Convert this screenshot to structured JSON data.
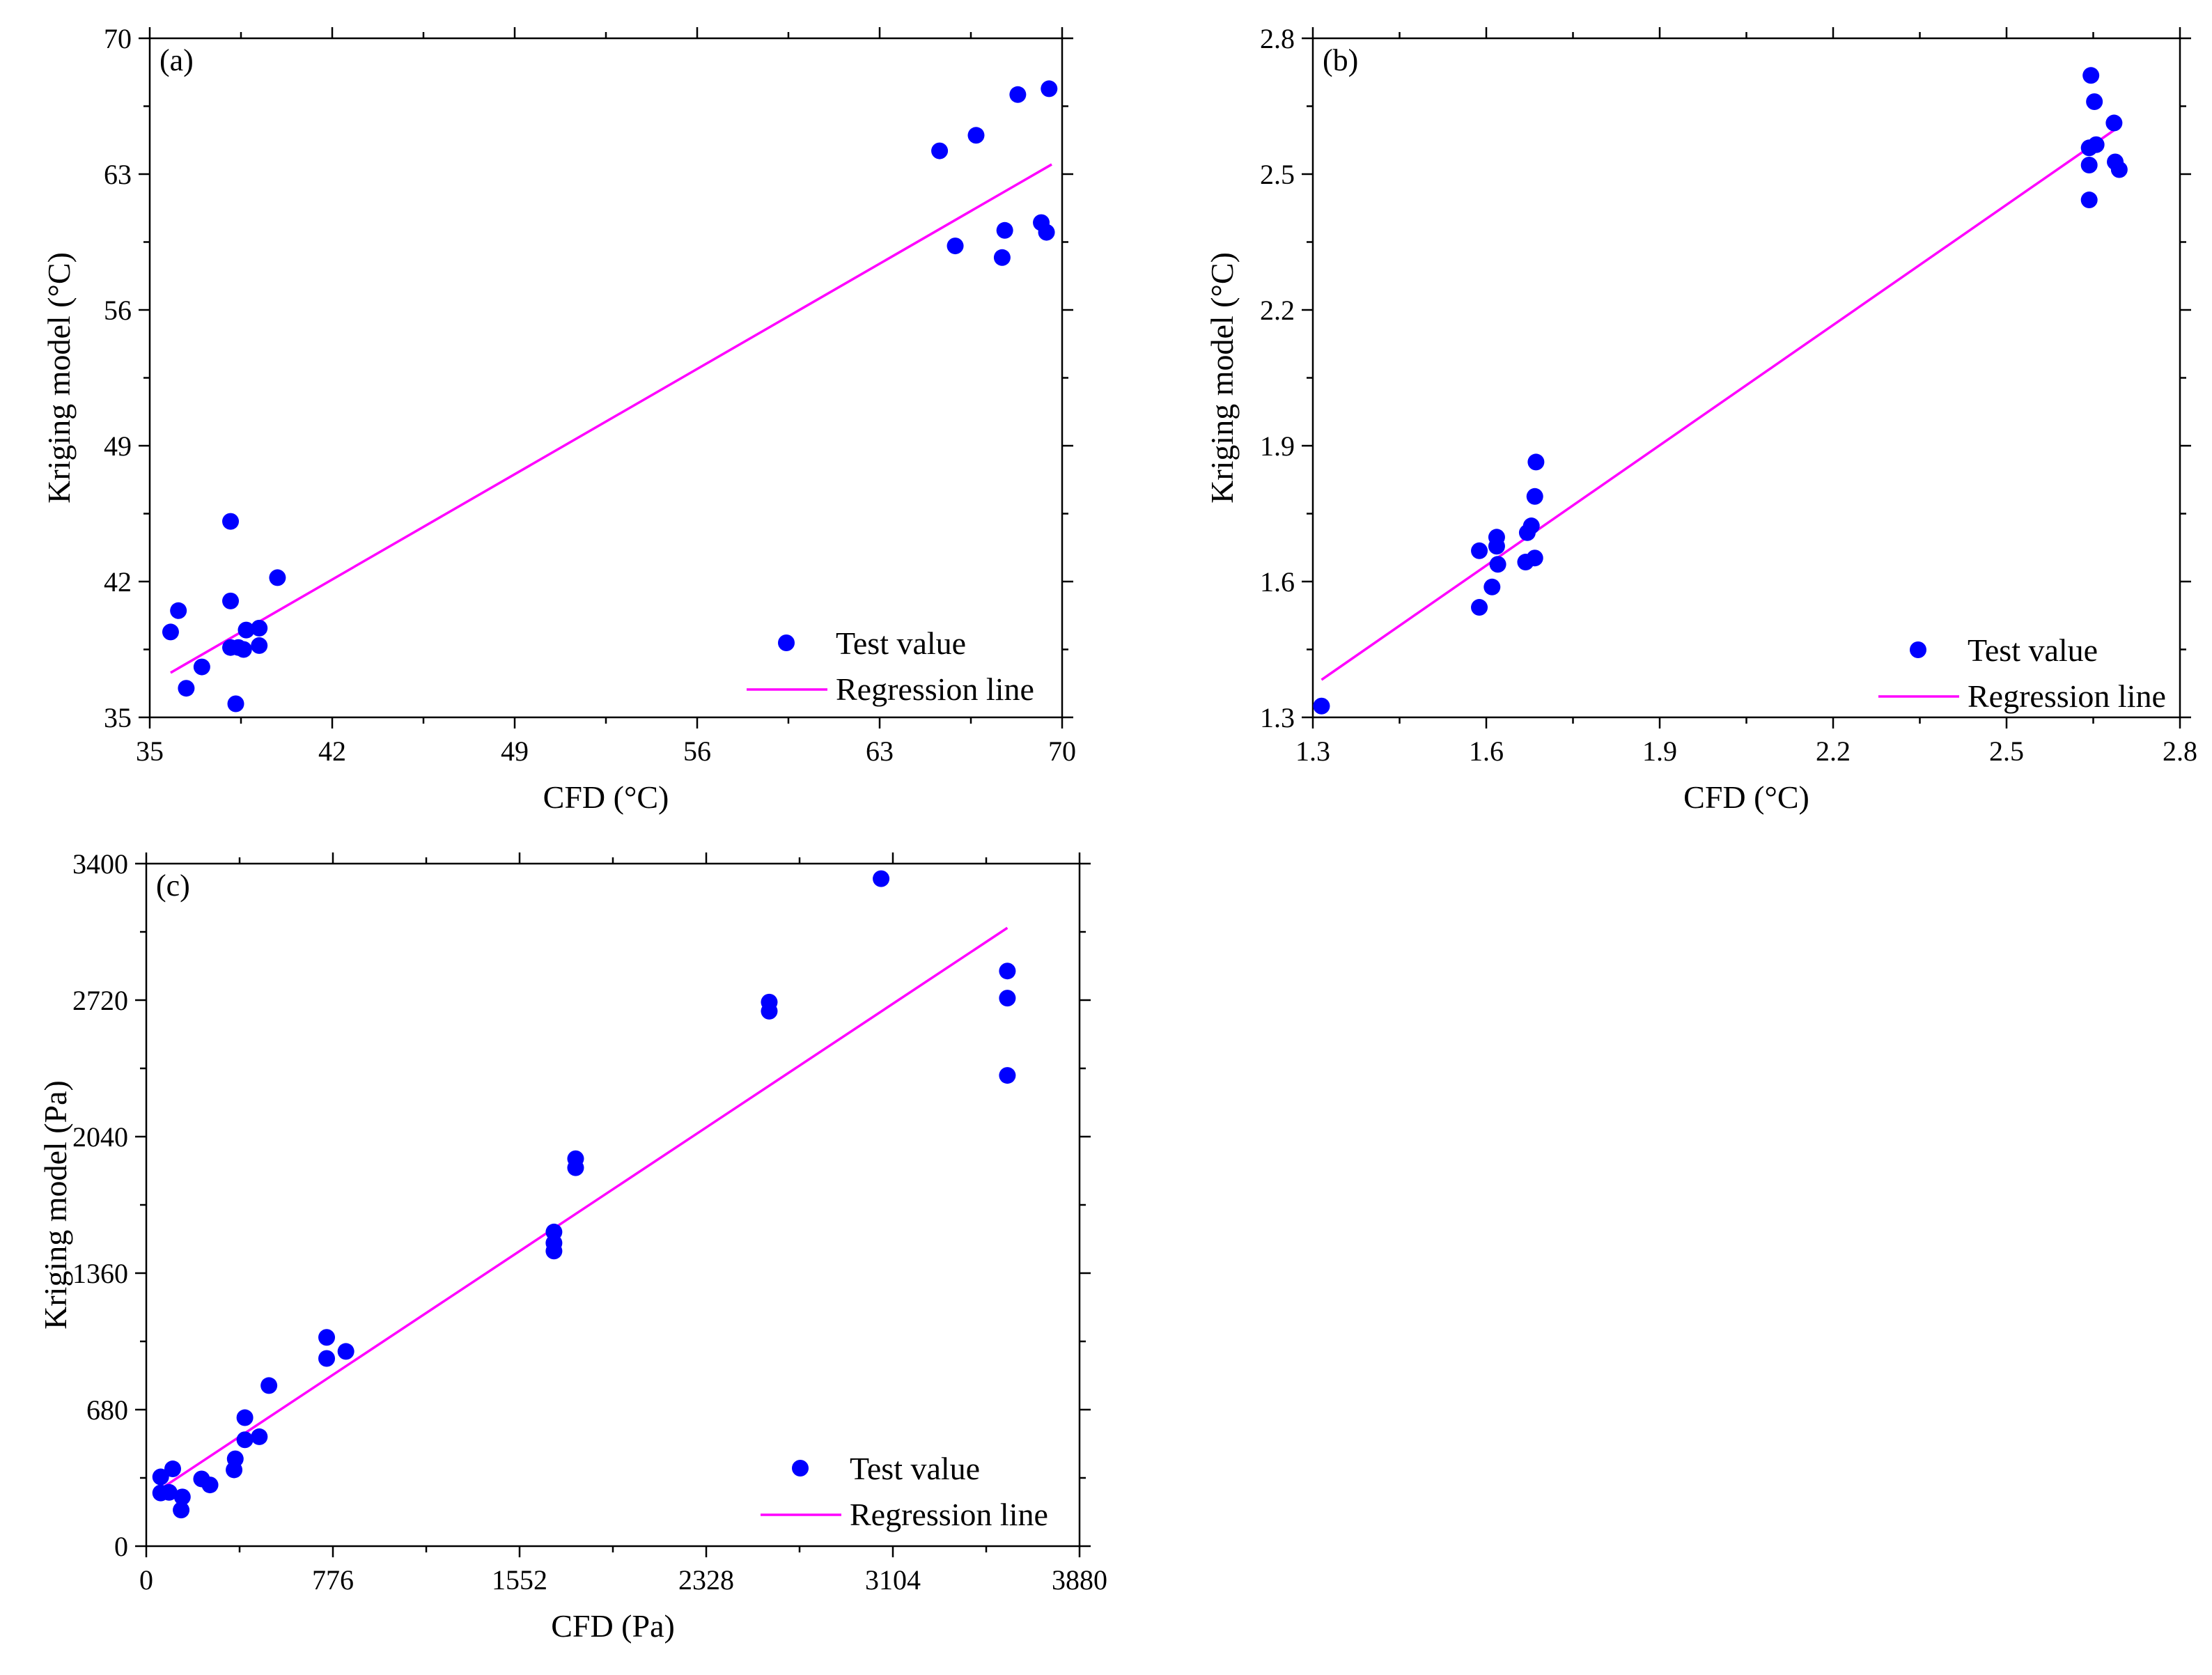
{
  "chart_data": [
    {
      "type": "scatter",
      "panel_label": "(a)",
      "xlabel": "CFD (°C)",
      "ylabel": "Kriging model (°C)",
      "xlim": [
        35,
        70
      ],
      "ylim": [
        35,
        70
      ],
      "xticks": [
        35,
        42,
        49,
        56,
        63,
        70
      ],
      "yticks": [
        35,
        42,
        49,
        56,
        63,
        70
      ],
      "xtick_labels": [
        "35",
        "42",
        "49",
        "56",
        "63",
        "70"
      ],
      "ytick_labels": [
        "35",
        "42",
        "49",
        "56",
        "63",
        "70"
      ],
      "legend_position": "bottom-right",
      "colors": {
        "points": "#0000ff",
        "line": "#ff00ff"
      },
      "series": [
        {
          "name": "Test value",
          "kind": "scatter",
          "points": [
            [
              35.8,
              39.4
            ],
            [
              36.1,
              40.5
            ],
            [
              36.4,
              36.5
            ],
            [
              37.0,
              37.6
            ],
            [
              38.1,
              45.1
            ],
            [
              38.1,
              41.0
            ],
            [
              38.1,
              38.6
            ],
            [
              38.4,
              38.6
            ],
            [
              38.6,
              38.5
            ],
            [
              38.7,
              39.5
            ],
            [
              39.2,
              38.7
            ],
            [
              39.2,
              39.6
            ],
            [
              39.9,
              42.2
            ],
            [
              38.3,
              35.7
            ],
            [
              65.3,
              64.2
            ],
            [
              65.9,
              59.3
            ],
            [
              66.7,
              65.0
            ],
            [
              67.7,
              58.7
            ],
            [
              67.8,
              60.1
            ],
            [
              68.3,
              67.1
            ],
            [
              69.2,
              60.5
            ],
            [
              69.4,
              60.0
            ],
            [
              69.5,
              67.4
            ]
          ]
        },
        {
          "name": "Regression line",
          "kind": "line",
          "points": [
            [
              35.8,
              37.3
            ],
            [
              69.6,
              63.5
            ]
          ]
        }
      ]
    },
    {
      "type": "scatter",
      "panel_label": "(b)",
      "xlabel": "CFD (°C)",
      "ylabel": "Kriging model (°C)",
      "xlim": [
        1.3,
        2.8
      ],
      "ylim": [
        1.3,
        2.8
      ],
      "xticks": [
        1.3,
        1.6,
        1.9,
        2.2,
        2.5,
        2.8
      ],
      "yticks": [
        1.3,
        1.6,
        1.9,
        2.2,
        2.5,
        2.8
      ],
      "xtick_labels": [
        "1.3",
        "1.6",
        "1.9",
        "2.2",
        "2.5",
        "2.8"
      ],
      "ytick_labels": [
        "1.3",
        "1.6",
        "1.9",
        "2.2",
        "2.5",
        "2.8"
      ],
      "legend_position": "bottom-right",
      "colors": {
        "points": "#0000ff",
        "line": "#ff00ff"
      },
      "series": [
        {
          "name": "Test value",
          "kind": "scatter",
          "points": [
            [
              1.315,
              1.325
            ],
            [
              1.588,
              1.543
            ],
            [
              1.588,
              1.668
            ],
            [
              1.61,
              1.588
            ],
            [
              1.618,
              1.698
            ],
            [
              1.618,
              1.678
            ],
            [
              1.62,
              1.638
            ],
            [
              1.668,
              1.643
            ],
            [
              1.671,
              1.708
            ],
            [
              1.678,
              1.723
            ],
            [
              1.684,
              1.652
            ],
            [
              1.684,
              1.788
            ],
            [
              1.686,
              1.864
            ],
            [
              2.643,
              2.443
            ],
            [
              2.643,
              2.52
            ],
            [
              2.643,
              2.558
            ],
            [
              2.646,
              2.718
            ],
            [
              2.652,
              2.66
            ],
            [
              2.655,
              2.565
            ],
            [
              2.686,
              2.613
            ],
            [
              2.688,
              2.527
            ],
            [
              2.695,
              2.51
            ]
          ]
        },
        {
          "name": "Regression line",
          "kind": "line",
          "points": [
            [
              1.315,
              1.383
            ],
            [
              2.695,
              2.605
            ]
          ]
        }
      ]
    },
    {
      "type": "scatter",
      "panel_label": "(c)",
      "xlabel": "CFD (Pa)",
      "ylabel": "Kriging model (Pa)",
      "xlim": [
        0,
        3880
      ],
      "ylim": [
        0,
        3400
      ],
      "xticks": [
        0,
        776,
        1552,
        2328,
        3104,
        3880
      ],
      "yticks": [
        0,
        680,
        1360,
        2040,
        2720,
        3400
      ],
      "xtick_labels": [
        "0",
        "776",
        "1552",
        "2328",
        "3104",
        "3880"
      ],
      "ytick_labels": [
        "0",
        "680",
        "1360",
        "2040",
        "2720",
        "3400"
      ],
      "legend_position": "bottom-right",
      "colors": {
        "points": "#0000ff",
        "line": "#ff00ff"
      },
      "series": [
        {
          "name": "Test value",
          "kind": "scatter",
          "points": [
            [
              60,
              265
            ],
            [
              60,
              345
            ],
            [
              95,
              268
            ],
            [
              110,
              385
            ],
            [
              145,
              180
            ],
            [
              150,
              245
            ],
            [
              230,
              335
            ],
            [
              265,
              305
            ],
            [
              365,
              380
            ],
            [
              370,
              435
            ],
            [
              410,
              530
            ],
            [
              410,
              640
            ],
            [
              470,
              545
            ],
            [
              510,
              800
            ],
            [
              750,
              1040
            ],
            [
              750,
              935
            ],
            [
              830,
              970
            ],
            [
              1695,
              1565
            ],
            [
              1695,
              1510
            ],
            [
              1695,
              1470
            ],
            [
              1785,
              1930
            ],
            [
              1785,
              1885
            ],
            [
              2590,
              2710
            ],
            [
              2590,
              2665
            ],
            [
              3055,
              3325
            ],
            [
              3580,
              2865
            ],
            [
              3580,
              2730
            ],
            [
              3580,
              2345
            ]
          ]
        },
        {
          "name": "Regression line",
          "kind": "line",
          "points": [
            [
              60,
              285
            ],
            [
              3580,
              3080
            ]
          ]
        }
      ]
    }
  ]
}
